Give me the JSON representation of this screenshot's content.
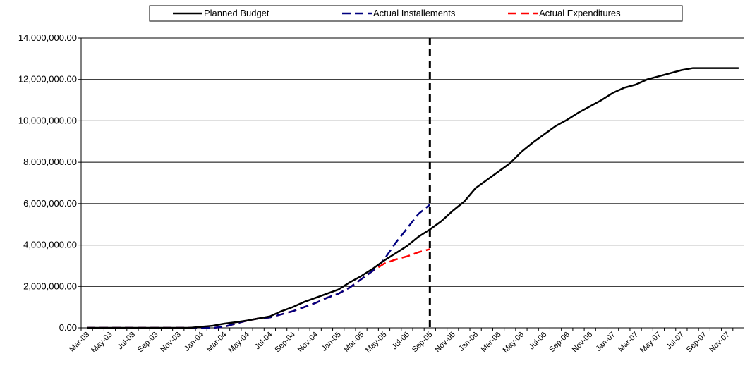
{
  "chart_data": {
    "type": "line",
    "categories": [
      "Mar-03",
      null,
      "May-03",
      null,
      "Jul-03",
      null,
      "Sep-03",
      null,
      "Nov-03",
      null,
      "Jan-04",
      null,
      "Mar-04",
      null,
      "May-04",
      null,
      "Jul-04",
      null,
      "Sep-04",
      null,
      "Nov-04",
      null,
      "Jan-05",
      null,
      "Mar-05",
      null,
      "May-05",
      null,
      "Jul-05",
      null,
      "Sep-05",
      null,
      "Nov-05",
      null,
      "Jan-06",
      null,
      "Mar-06",
      null,
      "May-06",
      null,
      "Jul-06",
      null,
      "Sep-06",
      null,
      "Nov-06",
      null,
      "Jan-07",
      null,
      "Mar-07",
      null,
      "May-07",
      null,
      "Jul-07",
      null,
      "Sep-07",
      null,
      "Nov-07",
      null
    ],
    "series": [
      {
        "name": "Planned Budget",
        "color": "#000000",
        "dash": false,
        "values": [
          0,
          0,
          0,
          0,
          0,
          0,
          0,
          0,
          0,
          0,
          50000,
          100000,
          200000,
          270000,
          350000,
          450000,
          550000,
          800000,
          1000000,
          1250000,
          1450000,
          1650000,
          1850000,
          2200000,
          2500000,
          2850000,
          3250000,
          3600000,
          3950000,
          4400000,
          4750000,
          5150000,
          5650000,
          6100000,
          6750000,
          7150000,
          7550000,
          7950000,
          8500000,
          8950000,
          9350000,
          9750000,
          10050000,
          10400000,
          10700000,
          11000000,
          11350000,
          11600000,
          11750000,
          12000000,
          12150000,
          12300000,
          12450000,
          12550000,
          12550000,
          12550000,
          12550000,
          12550000
        ]
      },
      {
        "name": "Actual Installements",
        "color": "#000080",
        "dash": true,
        "values": [
          0,
          0,
          0,
          0,
          0,
          0,
          0,
          0,
          0,
          0,
          0,
          0,
          50000,
          200000,
          350000,
          450000,
          500000,
          650000,
          800000,
          1000000,
          1200000,
          1450000,
          1650000,
          1950000,
          2350000,
          2750000,
          3300000,
          4100000,
          4800000,
          5500000,
          5950000,
          null,
          null,
          null,
          null,
          null,
          null,
          null,
          null,
          null,
          null,
          null,
          null,
          null,
          null,
          null,
          null,
          null,
          null,
          null,
          null,
          null,
          null,
          null,
          null,
          null,
          null,
          null
        ]
      },
      {
        "name": "Actual Expenditures",
        "color": "#ff0000",
        "dash": true,
        "values": [
          0,
          0,
          0,
          0,
          0,
          0,
          0,
          0,
          0,
          0,
          0,
          0,
          50000,
          200000,
          350000,
          450000,
          500000,
          650000,
          800000,
          1000000,
          1200000,
          1450000,
          1650000,
          1950000,
          2350000,
          2750000,
          3100000,
          3300000,
          3450000,
          3650000,
          3800000,
          null,
          null,
          null,
          null,
          null,
          null,
          null,
          null,
          null,
          null,
          null,
          null,
          null,
          null,
          null,
          null,
          null,
          null,
          null,
          null,
          null,
          null,
          null,
          null,
          null,
          null,
          null
        ]
      }
    ],
    "vline": "Sep-05",
    "ylim": [
      0,
      14000000
    ],
    "yticks": [
      {
        "value": 0,
        "label": "0.00"
      },
      {
        "value": 2000000,
        "label": "2,000,000.00"
      },
      {
        "value": 4000000,
        "label": "4,000,000.00"
      },
      {
        "value": 6000000,
        "label": "6,000,000.00"
      },
      {
        "value": 8000000,
        "label": "8,000,000.00"
      },
      {
        "value": 10000000,
        "label": "10,000,000.00"
      },
      {
        "value": 12000000,
        "label": "12,000,000.00"
      },
      {
        "value": 14000000,
        "label": "14,000,000.00"
      }
    ],
    "grid": true,
    "legend": "top"
  }
}
